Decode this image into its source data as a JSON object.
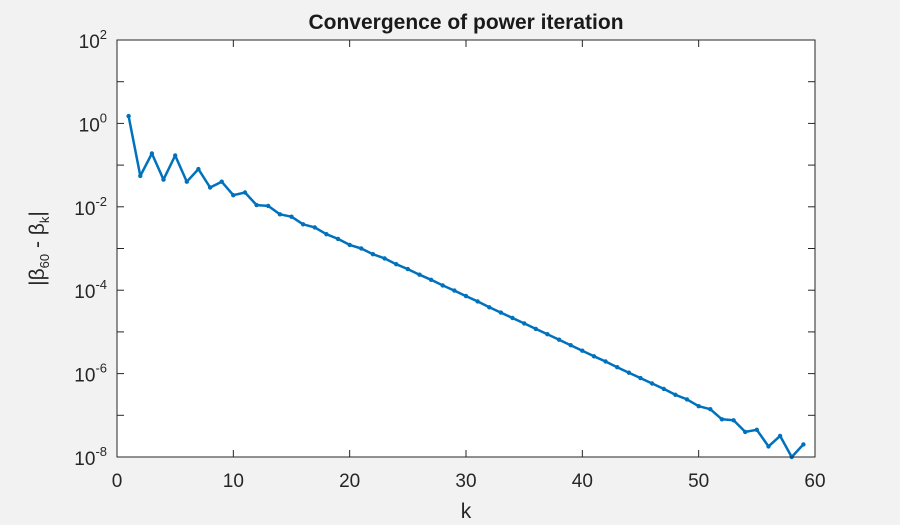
{
  "colors": {
    "figure_background": "#f2f2f2",
    "axes_background": "#ffffff",
    "axes_edge": "#262626",
    "series_color": "#0072bd"
  },
  "chart_data": {
    "type": "line",
    "title": "Convergence of power iteration",
    "xlabel": "k",
    "ylabel": "|β60 - βk|",
    "ylabel_parts": {
      "prefix": "|β",
      "sub1": "60",
      "middle": " - β",
      "sub2": "k",
      "suffix": "|"
    },
    "x_scale": "linear",
    "y_scale": "log",
    "xlim": [
      0,
      60
    ],
    "ylim": [
      1e-08,
      100
    ],
    "grid": false,
    "box": true,
    "x_ticks": [
      0,
      10,
      20,
      30,
      40,
      50,
      60
    ],
    "x_tick_labels": [
      "0",
      "10",
      "20",
      "30",
      "40",
      "50",
      "60"
    ],
    "y_ticks": [
      1e-08,
      1e-06,
      0.0001,
      0.01,
      1,
      100
    ],
    "y_tick_labels": [
      {
        "base": "10",
        "exp": "-8"
      },
      {
        "base": "10",
        "exp": "-6"
      },
      {
        "base": "10",
        "exp": "-4"
      },
      {
        "base": "10",
        "exp": "-2"
      },
      {
        "base": "10",
        "exp": "0"
      },
      {
        "base": "10",
        "exp": "2"
      }
    ],
    "marker": "point",
    "series": [
      {
        "x": [
          1,
          2,
          3,
          4,
          5,
          6,
          7,
          8,
          9,
          10,
          11,
          12,
          13,
          14,
          15,
          16,
          17,
          18,
          19,
          20,
          21,
          22,
          23,
          24,
          25,
          26,
          27,
          28,
          29,
          30,
          31,
          32,
          33,
          34,
          35,
          36,
          37,
          38,
          39,
          40,
          41,
          42,
          43,
          44,
          45,
          46,
          47,
          48,
          49,
          50,
          51,
          52,
          53,
          54,
          55,
          56,
          57,
          58,
          59
        ],
        "y": [
          1.5,
          0.055,
          0.19,
          0.045,
          0.17,
          0.04,
          0.08,
          0.029,
          0.04,
          0.019,
          0.022,
          0.011,
          0.0105,
          0.0066,
          0.0058,
          0.0038,
          0.0032,
          0.0022,
          0.0017,
          0.00122,
          0.001,
          0.00073,
          0.00058,
          0.00042,
          0.00032,
          0.000235,
          0.000178,
          0.00013,
          9.8e-05,
          7.2e-05,
          5.4e-05,
          3.9e-05,
          2.9e-05,
          2.15e-05,
          1.6e-05,
          1.18e-05,
          8.8e-06,
          6.5e-06,
          4.8e-06,
          3.55e-06,
          2.6e-06,
          1.95e-06,
          1.42e-06,
          1.05e-06,
          7.8e-07,
          5.8e-07,
          4.3e-07,
          3.1e-07,
          2.4e-07,
          1.65e-07,
          1.4e-07,
          8e-08,
          7.6e-08,
          4e-08,
          4.5e-08,
          1.8e-08,
          3.2e-08,
          1e-08,
          2e-08
        ]
      }
    ]
  }
}
